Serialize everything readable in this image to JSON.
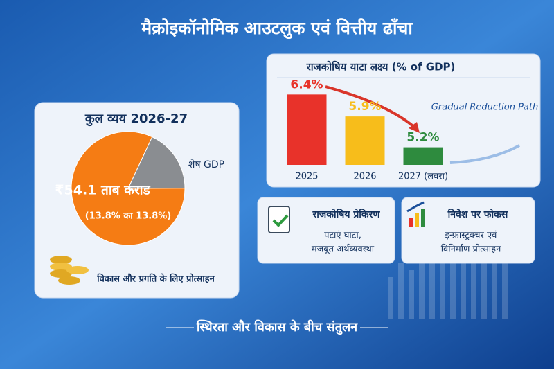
{
  "title": "मैक्रोइकॉनोमिक आउटलुक एवं वित्तीय ढाँचा",
  "expenditure_card": {
    "title": "कुल व्यय 2026-27",
    "caption": "विकास और प्रगति के लिए प्रोत्साहन"
  },
  "chart_data": [
    {
      "type": "pie",
      "categories": [
        "शेष GDP",
        null
      ],
      "values": [
        18,
        82
      ],
      "colors": [
        "#8a8d91",
        "#f57c14"
      ],
      "annotations": [
        "₹54.1 ताब कराड",
        "(13.8% का 13.8%)"
      ]
    },
    {
      "type": "bar",
      "title": "राजकोषिय याटा लक्ष्य (% of GDP)",
      "categories": [
        "2025",
        "2026",
        "2027 (लवरा)"
      ],
      "values": [
        6.4,
        5.9,
        5.2
      ],
      "value_labels": [
        "6.4%",
        "5.9%",
        "5.2%"
      ],
      "colors": [
        "#e8322a",
        "#f7bd1b",
        "#2e8b3e"
      ],
      "ylim": [
        4.8,
        6.5
      ],
      "annotation": "Gradual Reduction Path"
    }
  ],
  "cards": [
    {
      "title": "राजकोषिय प्रेकिरण",
      "lines": [
        "पटाएं घाटा,",
        "मजबूत अर्थव्यवस्था"
      ]
    },
    {
      "title": "निवेश पर फोकस",
      "lines": [
        "इन्फ्रास्ट्रक्चर एवं",
        "विनिर्माण प्रोत्साहन"
      ]
    }
  ],
  "footer": "स्थिरता और विकास के बीच संतुलन"
}
